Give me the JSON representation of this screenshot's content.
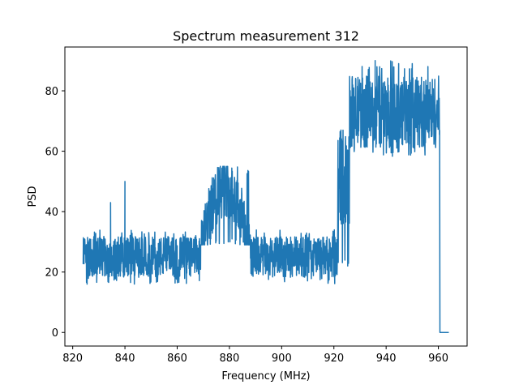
{
  "chart_data": {
    "type": "line",
    "title": "Spectrum measurement 312",
    "xlabel": "Frequency (MHz)",
    "ylabel": "PSD",
    "xlim": [
      817,
      971
    ],
    "ylim": [
      -4.5,
      94.5
    ],
    "xticks": [
      820,
      840,
      860,
      880,
      900,
      920,
      940,
      960
    ],
    "yticks": [
      0,
      20,
      40,
      60,
      80
    ],
    "grid": false,
    "legend": "none",
    "line_color": "#1f77b4",
    "series": [
      {
        "segments": [
          {
            "x_start": 824,
            "x_end": 869,
            "base": 25,
            "low": 16,
            "high": 34
          },
          {
            "x_start": 869,
            "x_end": 888,
            "base": 42,
            "low": 29,
            "high": 55,
            "shape": "bump"
          },
          {
            "x_start": 888,
            "x_end": 921.5,
            "base": 25,
            "low": 16,
            "high": 34
          },
          {
            "x_start": 921.5,
            "x_end": 926,
            "base": 52,
            "low": 22,
            "high": 67
          },
          {
            "x_start": 926,
            "x_end": 960.5,
            "base": 73,
            "low": 58,
            "high": 90
          }
        ],
        "spikes": [
          {
            "x": 834.5,
            "y": 43
          },
          {
            "x": 840,
            "y": 50
          },
          {
            "x": 825.5,
            "y": 16
          },
          {
            "x": 925.3,
            "y": 22
          },
          {
            "x": 935.8,
            "y": 90
          },
          {
            "x": 944.8,
            "y": 89
          }
        ],
        "tail": [
          {
            "x": 960.6,
            "y": 0
          },
          {
            "x": 964,
            "y": 0
          }
        ]
      }
    ]
  }
}
